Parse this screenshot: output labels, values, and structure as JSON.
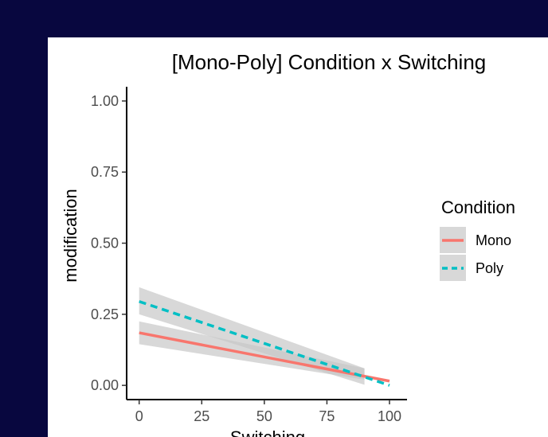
{
  "chart_data": {
    "type": "line",
    "title": "[Mono-Poly] Condition x Switching",
    "xlabel": "Switching",
    "ylabel": "modification",
    "xlim": [
      -5,
      107
    ],
    "ylim": [
      -0.05,
      1.05
    ],
    "x_ticks": [
      0,
      25,
      50,
      75,
      100
    ],
    "x_tick_labels": [
      "0",
      "25",
      "50",
      "75",
      "100"
    ],
    "y_ticks": [
      0,
      0.25,
      0.5,
      0.75,
      1.0
    ],
    "y_tick_labels": [
      "0.00",
      "0.25",
      "0.50",
      "0.75",
      "1.00"
    ],
    "grid": false,
    "legend_title": "Condition",
    "legend_position": "right",
    "series": [
      {
        "name": "Mono",
        "color": "#f8766d",
        "dash": "solid",
        "x": [
          0,
          100
        ],
        "y": [
          0.185,
          0.015
        ],
        "ci_x": [
          0,
          90
        ],
        "ci_lower": [
          0.145,
          0.02
        ],
        "ci_upper": [
          0.225,
          0.06
        ]
      },
      {
        "name": "Poly",
        "color": "#00bfc4",
        "dash": "dashed",
        "x": [
          0,
          100
        ],
        "y": [
          0.295,
          0.0
        ],
        "ci_x": [
          0,
          90
        ],
        "ci_lower": [
          0.25,
          0.002
        ],
        "ci_upper": [
          0.345,
          0.06
        ]
      }
    ],
    "ribbon_color": "#c8c8c8"
  }
}
